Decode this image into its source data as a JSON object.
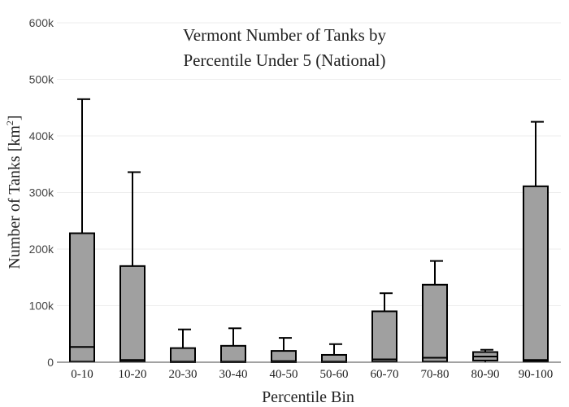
{
  "chart_data": {
    "type": "box",
    "title": [
      "Vermont Number of Tanks by",
      "Percentile Under 5 (National)"
    ],
    "xlabel": "Percentile Bin",
    "ylabel_main": "Number of Tanks  [km",
    "ylabel_sup": "2",
    "ylabel_tail": "]",
    "ylim": [
      0,
      600000
    ],
    "yticks": [
      0,
      100000,
      200000,
      300000,
      400000,
      500000,
      600000
    ],
    "ytick_labels": [
      "0",
      "100k",
      "200k",
      "300k",
      "400k",
      "500k",
      "600k"
    ],
    "grid": true,
    "categories": [
      "0-10",
      "10-20",
      "20-30",
      "30-40",
      "40-50",
      "50-60",
      "60-70",
      "70-80",
      "80-90",
      "90-100"
    ],
    "boxes": [
      {
        "min": 0,
        "q1": 1000,
        "median": 27000,
        "q3": 228000,
        "max": 465000
      },
      {
        "min": 0,
        "q1": 1000,
        "median": 4000,
        "q3": 170000,
        "max": 336000
      },
      {
        "min": 0,
        "q1": 0,
        "median": 1000,
        "q3": 25000,
        "max": 58000
      },
      {
        "min": 0,
        "q1": 0,
        "median": 1000,
        "q3": 29000,
        "max": 60000
      },
      {
        "min": 0,
        "q1": 0,
        "median": 2000,
        "q3": 20000,
        "max": 43000
      },
      {
        "min": 0,
        "q1": 0,
        "median": 1000,
        "q3": 13000,
        "max": 32000
      },
      {
        "min": 0,
        "q1": 1000,
        "median": 5000,
        "q3": 90000,
        "max": 122000
      },
      {
        "min": 0,
        "q1": 1000,
        "median": 8000,
        "q3": 137000,
        "max": 179000
      },
      {
        "min": 0,
        "q1": 3000,
        "median": 10000,
        "q3": 18000,
        "max": 22000
      },
      {
        "min": 0,
        "q1": 2000,
        "median": 4000,
        "q3": 311000,
        "max": 425000
      }
    ]
  }
}
